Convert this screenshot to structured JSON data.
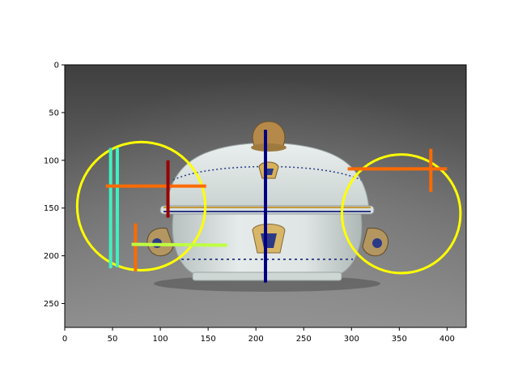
{
  "image": {
    "subject": "porcelain-tureen-with-lid",
    "background_colors": [
      "#3f3f3f",
      "#8f8f8f"
    ]
  },
  "axes": {
    "xlim": [
      0,
      420
    ],
    "ylim": [
      275,
      0
    ],
    "x_ticks": [
      0,
      50,
      100,
      150,
      200,
      250,
      300,
      350,
      400
    ],
    "y_ticks": [
      0,
      50,
      100,
      150,
      200,
      250
    ]
  },
  "annotations": {
    "circles": [
      {
        "cx": 80,
        "cy": 148,
        "r": 67,
        "color": "#ffff00"
      },
      {
        "cx": 352,
        "cy": 156,
        "r": 62,
        "color": "#ffff00"
      }
    ],
    "segments": [
      {
        "x1": 48,
        "y1": 87,
        "x2": 48,
        "y2": 213,
        "color": "#40f0c0"
      },
      {
        "x1": 55,
        "y1": 87,
        "x2": 55,
        "y2": 212,
        "color": "#40f0c0"
      },
      {
        "x1": 43,
        "y1": 127,
        "x2": 148,
        "y2": 127,
        "color": "#ff6a00"
      },
      {
        "x1": 108,
        "y1": 100,
        "x2": 108,
        "y2": 160,
        "color": "#990000"
      },
      {
        "x1": 74,
        "y1": 166,
        "x2": 74,
        "y2": 216,
        "color": "#ff6a00"
      },
      {
        "x1": 70,
        "y1": 188,
        "x2": 170,
        "y2": 189,
        "color": "#c0ff40"
      },
      {
        "x1": 210,
        "y1": 68,
        "x2": 210,
        "y2": 228,
        "color": "#000080"
      },
      {
        "x1": 296,
        "y1": 109,
        "x2": 400,
        "y2": 109,
        "color": "#ff6a00"
      },
      {
        "x1": 383,
        "y1": 88,
        "x2": 383,
        "y2": 133,
        "color": "#ff6a00"
      }
    ]
  }
}
